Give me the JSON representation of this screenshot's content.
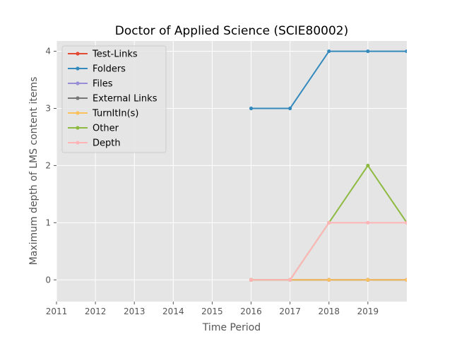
{
  "chart_data": {
    "type": "line",
    "title": "Doctor of Applied Science (SCIE80002)",
    "xlabel": "Time Period",
    "ylabel": "Maximum depth of LMS content items",
    "x_ticks": [
      "2011",
      "2012",
      "2013",
      "2014",
      "2015",
      "2016",
      "2017",
      "2018",
      "2019"
    ],
    "y_ticks": [
      "0",
      "1",
      "2",
      "3",
      "4"
    ],
    "xlim": [
      2011,
      2020
    ],
    "ylim": [
      -0.38,
      4.18
    ],
    "grid": true,
    "legend_position": "top-left",
    "x": [
      2016,
      2017,
      2018,
      2019,
      2020
    ],
    "series": [
      {
        "name": "Test-Links",
        "color": "#E24A33",
        "values": [
          0,
          0,
          0,
          0,
          0
        ]
      },
      {
        "name": "Folders",
        "color": "#348ABD",
        "values": [
          3,
          3,
          4,
          4,
          4
        ]
      },
      {
        "name": "Files",
        "color": "#988ED5",
        "values": [
          0,
          0,
          0,
          0,
          0
        ]
      },
      {
        "name": "External Links",
        "color": "#777777",
        "values": [
          0,
          0,
          0,
          0,
          0
        ]
      },
      {
        "name": "TurnItIn(s)",
        "color": "#FBC15E",
        "values": [
          0,
          0,
          0,
          0,
          0
        ]
      },
      {
        "name": "Other",
        "color": "#8EBA42",
        "values": [
          0,
          0,
          1,
          2,
          1
        ]
      },
      {
        "name": "Depth",
        "color": "#FFB5B8",
        "values": [
          0,
          0,
          1,
          1,
          1
        ]
      }
    ]
  }
}
